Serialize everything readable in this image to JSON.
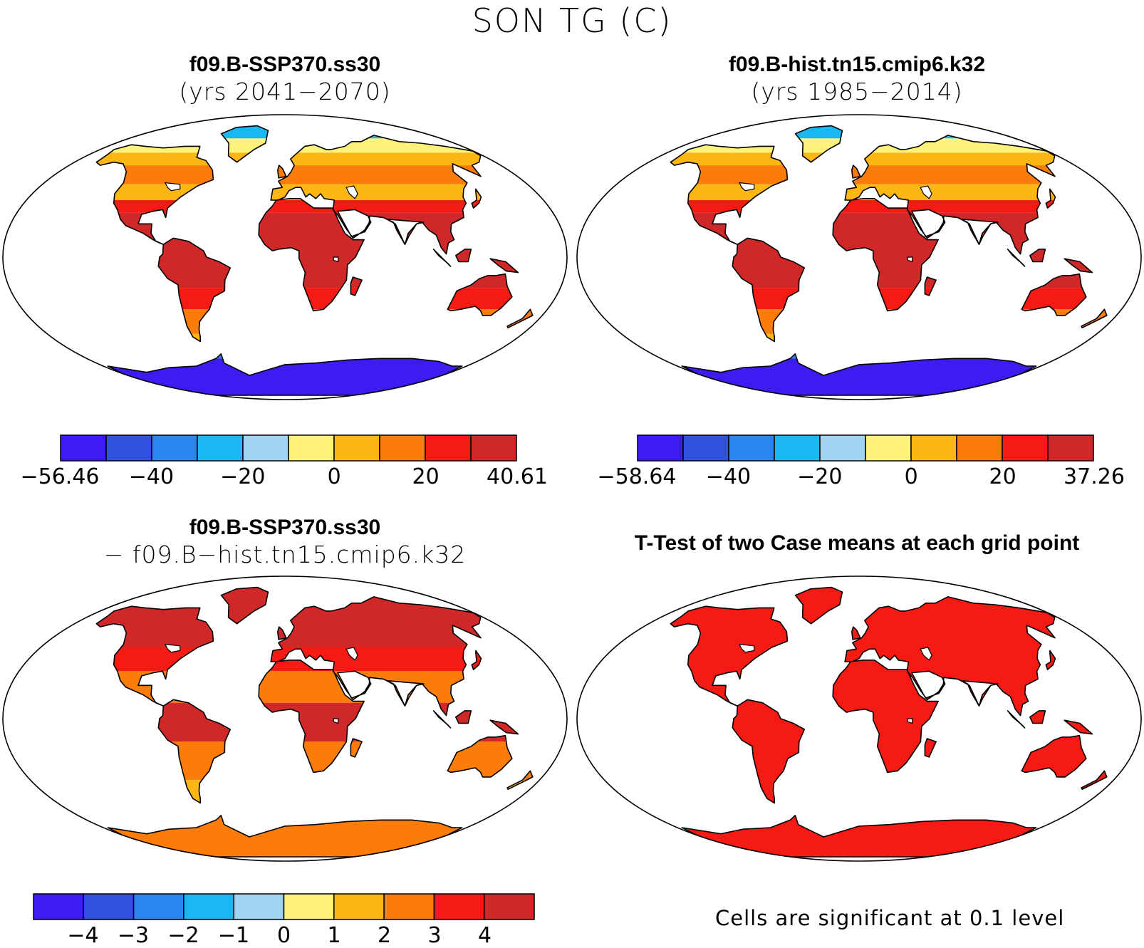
{
  "figure": {
    "title": "SON TG (C)"
  },
  "panels": [
    {
      "title_line1": "f09.B-SSP370.ss30",
      "title_line2": "(yrs 2041−2070)",
      "colorbar": {
        "colors": [
          "#3c1cf0",
          "#3050e0",
          "#2a86ee",
          "#1ab8f2",
          "#a0d4f0",
          "#fff27a",
          "#fdb714",
          "#fb7c08",
          "#f51a14",
          "#d02828"
        ],
        "labels": [
          "−56.46",
          "−40",
          "−20",
          "0",
          "20",
          "40.61"
        ]
      }
    },
    {
      "title_line1": "f09.B-hist.tn15.cmip6.k32",
      "title_line2": "(yrs 1985−2014)",
      "colorbar": {
        "colors": [
          "#3c1cf0",
          "#3050e0",
          "#2a86ee",
          "#1ab8f2",
          "#a0d4f0",
          "#fff27a",
          "#fdb714",
          "#fb7c08",
          "#f51a14",
          "#d02828"
        ],
        "labels": [
          "−58.64",
          "−40",
          "−20",
          "0",
          "20",
          "37.26"
        ]
      }
    },
    {
      "title_line1": "f09.B-SSP370.ss30",
      "title_line2": "− f09.B−hist.tn15.cmip6.k32",
      "colorbar": {
        "colors": [
          "#3c1cf0",
          "#3050e0",
          "#2a86ee",
          "#1ab8f2",
          "#a0d4f0",
          "#fff27a",
          "#fdb714",
          "#fb7c08",
          "#f51a14",
          "#d02828"
        ],
        "labels": [
          "−4",
          "−3",
          "−2",
          "−1",
          "0",
          "1",
          "2",
          "3",
          "4"
        ]
      }
    },
    {
      "title_line1": "T-Test of two Case means at each grid point",
      "note": "Cells are significant at 0.1 level",
      "fill": "#f51a14"
    }
  ]
}
